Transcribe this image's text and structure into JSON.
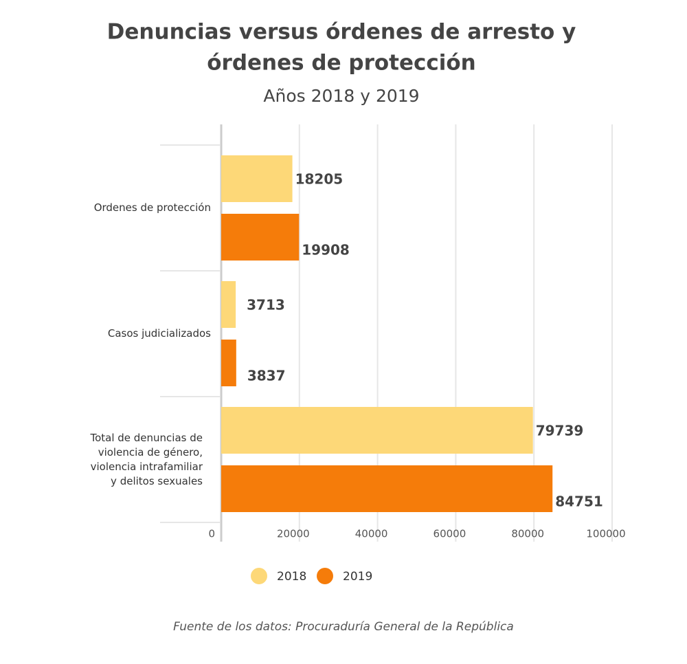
{
  "chart_data": {
    "type": "bar",
    "orientation": "horizontal",
    "title": "Denuncias versus órdenes de arresto y\nórdenes de protección",
    "subtitle": "Años 2018 y 2019",
    "source": "Fuente de los datos: Procuraduría General de la República",
    "categories": [
      "Ordenes de protección",
      "Casos judicializados",
      "Total de denuncias  de\nviolencia de género,\nviolencia intrafamiliar\ny delitos sexuales"
    ],
    "series": [
      {
        "name": "2018",
        "color": "#fdd878",
        "values": [
          18205,
          3713,
          79739
        ]
      },
      {
        "name": "2019",
        "color": "#f57c0a",
        "values": [
          19908,
          3837,
          84751
        ]
      }
    ],
    "xlim": [
      0,
      100000
    ],
    "xticks": [
      0,
      20000,
      40000,
      60000,
      80000,
      100000
    ],
    "grid": true
  }
}
